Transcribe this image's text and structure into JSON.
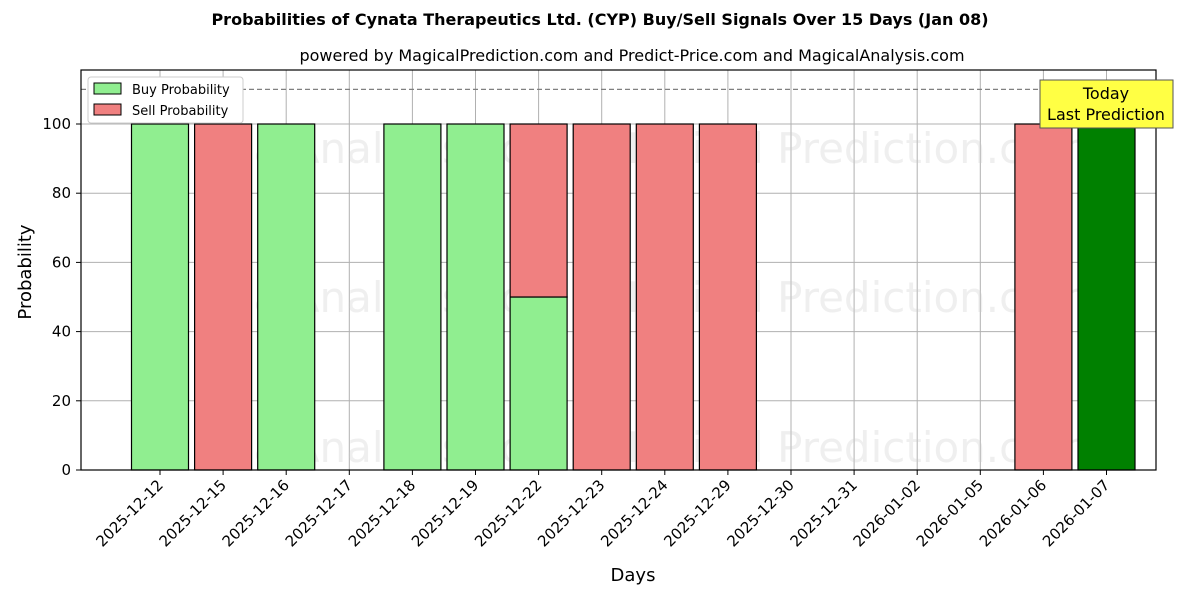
{
  "title": "Probabilities of Cynata Therapeutics Ltd. (CYP) Buy/Sell Signals Over 15 Days (Jan 08)",
  "subtitle": "powered by MagicalPrediction.com and Predict-Price.com and MagicalAnalysis.com",
  "legend": {
    "buy": "Buy Probability",
    "sell": "Sell Probability"
  },
  "annotation": {
    "line1": "Today",
    "line2": "Last Prediction"
  },
  "watermarks": [
    "MagicalAnalysis.com",
    "Magical Prediction.com"
  ],
  "colors": {
    "buy": "#90ee90",
    "sell": "#f08080",
    "today_buy": "#008000",
    "annotation_bg": "#ffff44"
  },
  "chart_data": {
    "type": "bar",
    "title": "Probabilities of Cynata Therapeutics Ltd. (CYP) Buy/Sell Signals Over 15 Days (Jan 08)",
    "subtitle": "powered by MagicalPrediction.com and Predict-Price.com and MagicalAnalysis.com",
    "xlabel": "Days",
    "ylabel": "Probability",
    "ylim": [
      0,
      115
    ],
    "yticks": [
      0,
      20,
      40,
      60,
      80,
      100
    ],
    "reference_line": {
      "y": 110,
      "style": "dashed"
    },
    "grid": true,
    "legend_position": "upper left",
    "stacked": true,
    "categories": [
      "2025-12-12",
      "2025-12-15",
      "2025-12-16",
      "2025-12-17",
      "2025-12-18",
      "2025-12-19",
      "2025-12-22",
      "2025-12-23",
      "2025-12-24",
      "2025-12-29",
      "2025-12-30",
      "2025-12-31",
      "2026-01-02",
      "2026-01-05",
      "2026-01-06",
      "2026-01-07"
    ],
    "series": [
      {
        "name": "Buy Probability",
        "values": [
          100,
          0,
          100,
          0,
          100,
          100,
          50,
          0,
          0,
          0,
          0,
          0,
          0,
          0,
          0,
          100
        ]
      },
      {
        "name": "Sell Probability",
        "values": [
          0,
          100,
          0,
          0,
          0,
          0,
          50,
          100,
          100,
          100,
          0,
          0,
          0,
          0,
          100,
          0
        ]
      }
    ],
    "annotations": [
      {
        "text": "Today\nLast Prediction",
        "x": "2026-01-07"
      }
    ]
  }
}
